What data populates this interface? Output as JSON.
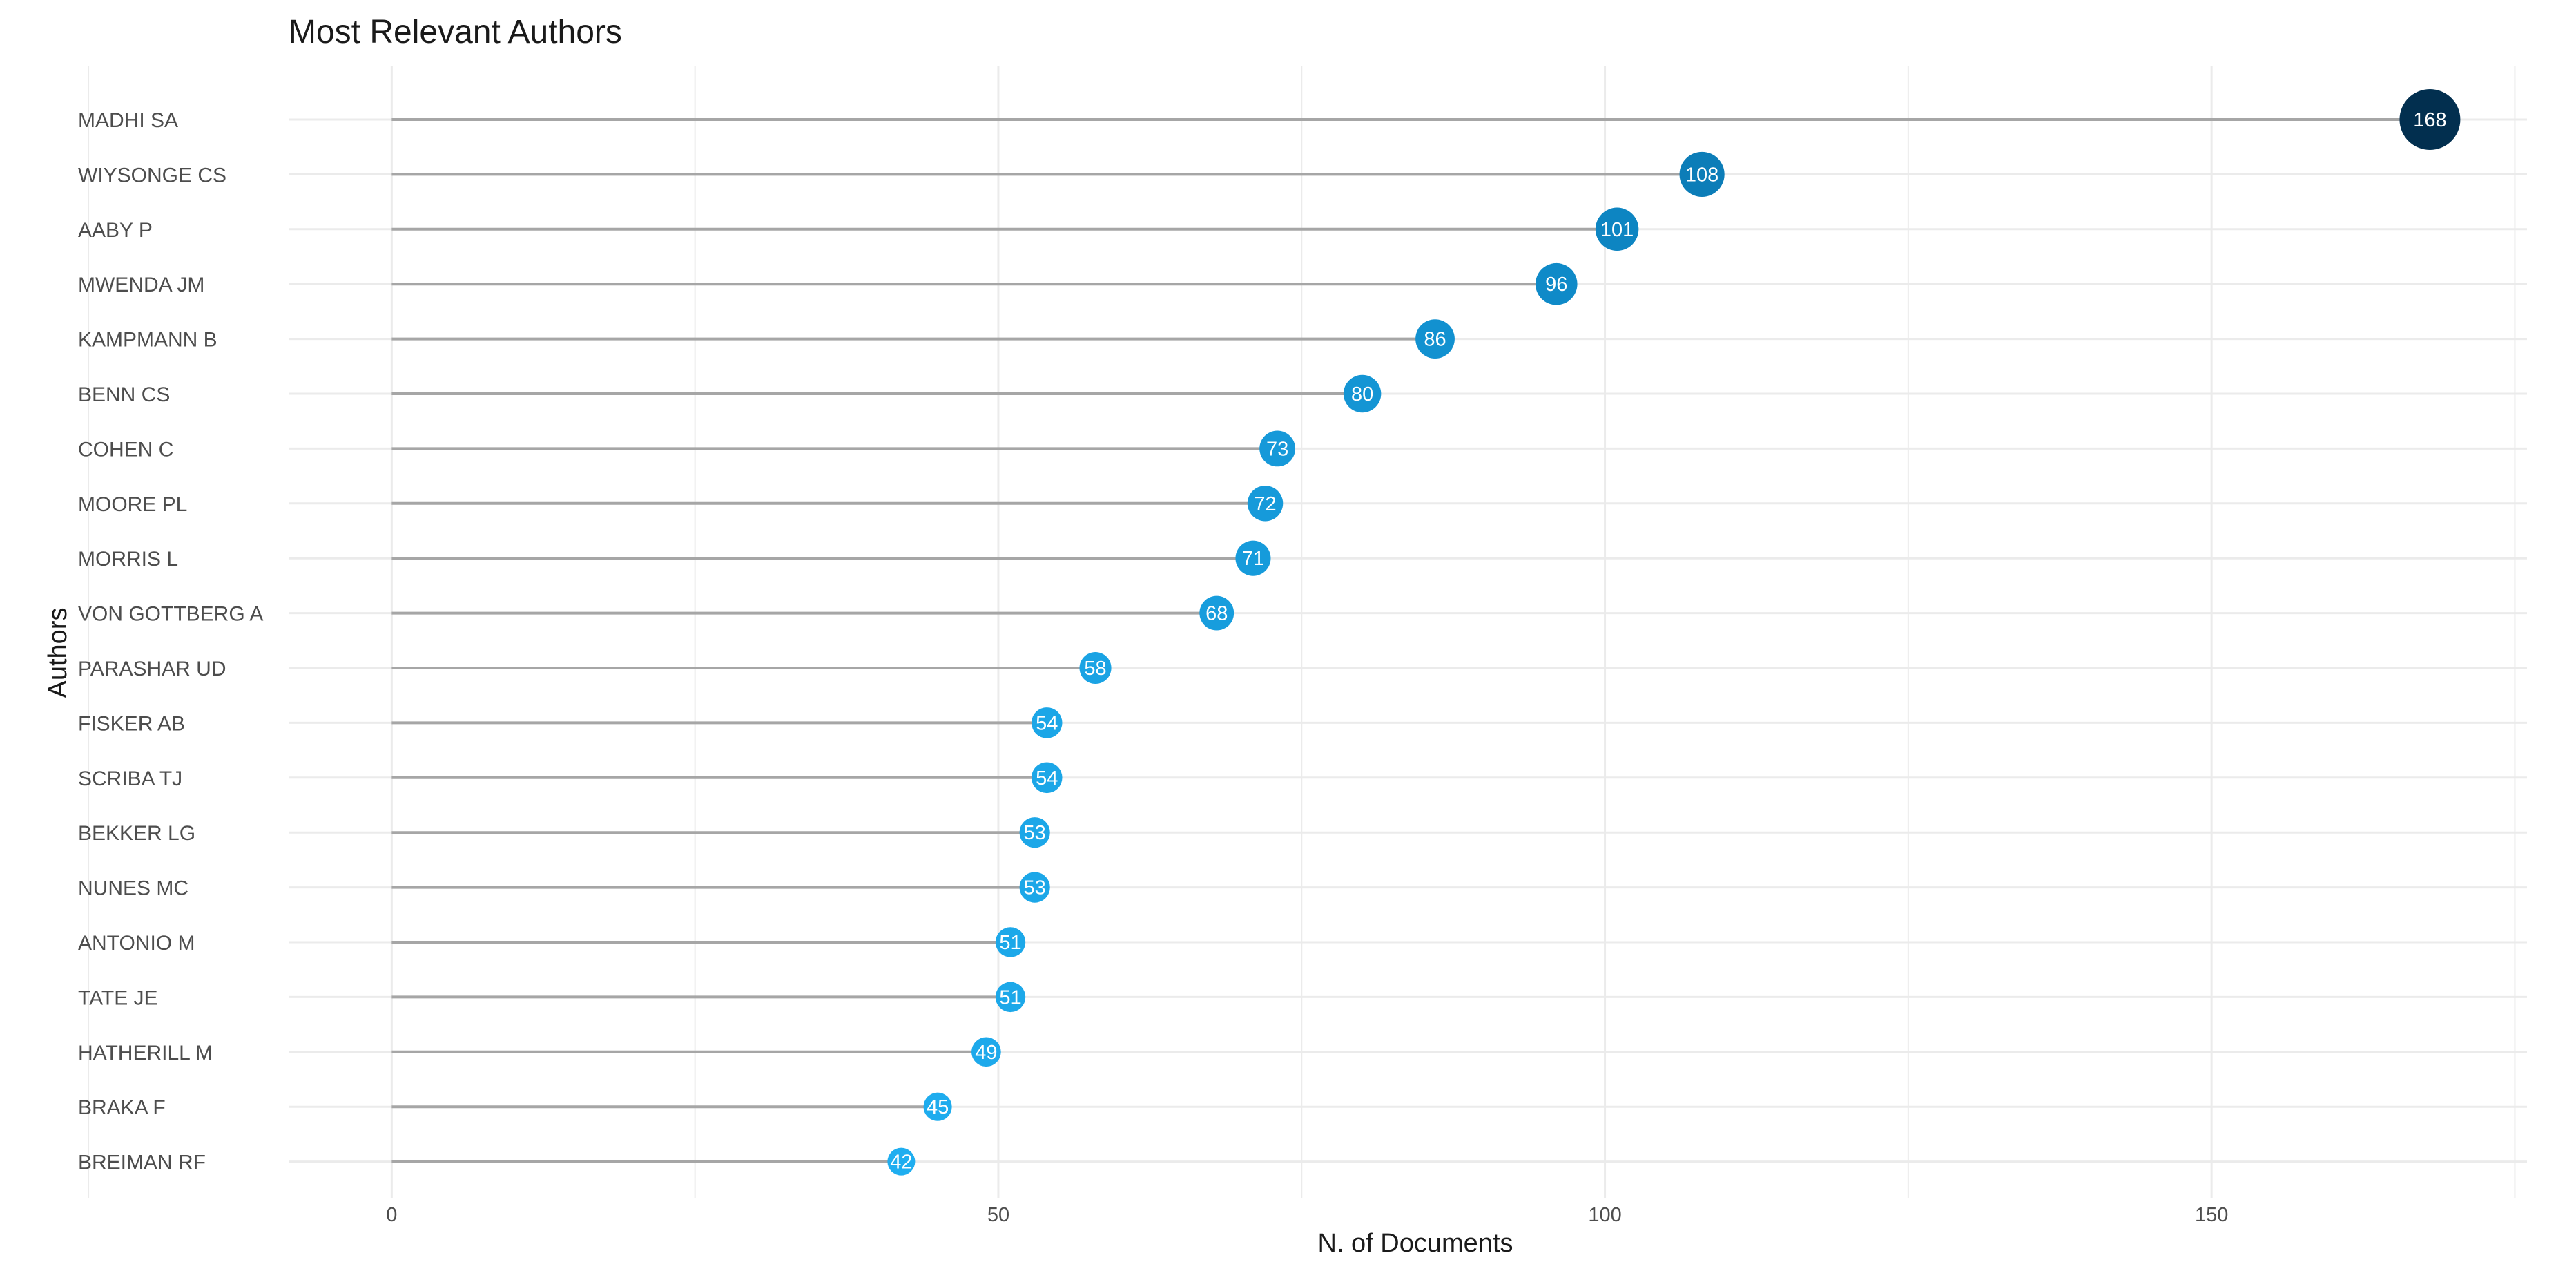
{
  "chart_data": {
    "type": "lollipop",
    "title": "Most Relevant Authors",
    "xlabel": "N. of Documents",
    "ylabel": "Authors",
    "xlim": [
      -8.5,
      176
    ],
    "xticks": [
      0,
      50,
      100,
      150
    ],
    "grid": true,
    "legend": "none",
    "colors": {
      "low": "#1faef0",
      "mid": "#0d86c4",
      "high": "#022f4f",
      "stem": "#a6a6a6",
      "grid": "#ebebeb"
    },
    "categories": [
      "MADHI SA",
      "WIYSONGE CS",
      "AABY P",
      "MWENDA JM",
      "KAMPMANN B",
      "BENN CS",
      "COHEN C",
      "MOORE PL",
      "MORRIS L",
      "VON GOTTBERG A",
      "PARASHAR UD",
      "FISKER AB",
      "SCRIBA TJ",
      "BEKKER LG",
      "NUNES MC",
      "ANTONIO M",
      "TATE JE",
      "HATHERILL M",
      "BRAKA F",
      "BREIMAN RF"
    ],
    "values": [
      168,
      108,
      101,
      96,
      86,
      80,
      73,
      72,
      71,
      68,
      58,
      54,
      54,
      53,
      53,
      51,
      51,
      49,
      45,
      42
    ]
  }
}
